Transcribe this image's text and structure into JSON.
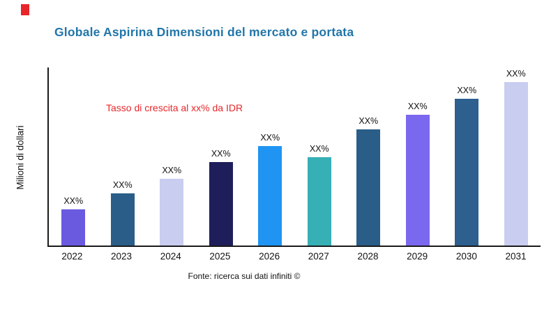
{
  "title": "Globale Aspirina Dimensioni del mercato e portata",
  "source": "Fonte: ricerca sui dati infiniti ©",
  "colors": {
    "brand": "#e8262a",
    "title": "#2276a9",
    "annotation": "#e8262a",
    "axis": "#1a1a1a"
  },
  "chart_data": {
    "type": "bar",
    "title": "Globale Aspirina Dimensioni del mercato e portata",
    "ylabel": "Milioni di dollari",
    "xlabel": "",
    "categories": [
      "2022",
      "2023",
      "2024",
      "2025",
      "2026",
      "2027",
      "2028",
      "2029",
      "2030",
      "2031"
    ],
    "values": [
      22,
      32,
      41,
      51,
      61,
      54,
      71,
      80,
      90,
      100
    ],
    "value_unit": "relative-index (no numeric y ticks shown)",
    "bar_labels": [
      "XX%",
      "XX%",
      "XX%",
      "XX%",
      "XX%",
      "XX%",
      "XX%",
      "XX%",
      "XX%",
      "XX%"
    ],
    "bar_colors": [
      "#6a5ae0",
      "#2a5d87",
      "#c9cdf0",
      "#1e1e5a",
      "#2094f3",
      "#36b0b5",
      "#2a5d87",
      "#7a68ee",
      "#2d5f8f",
      "#c9cdf0"
    ],
    "annotation_text": "Tasso di crescita al xx% da IDR",
    "ylim": [
      0,
      110
    ],
    "grid": false,
    "legend": "none"
  }
}
